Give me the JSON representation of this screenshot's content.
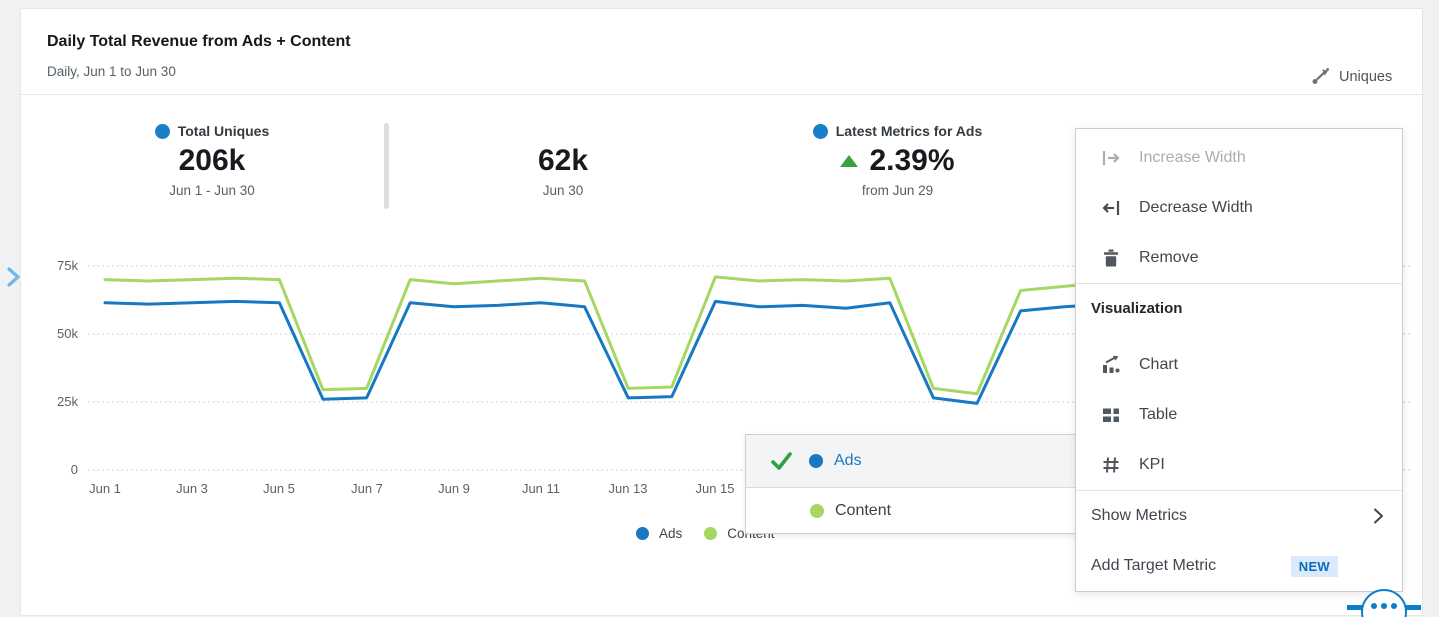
{
  "header": {
    "title": "Daily Total Revenue from Ads + Content",
    "subtitle": "Daily, Jun 1 to Jun 30",
    "metric_selector_label": "Uniques"
  },
  "kpis": {
    "total_uniques": {
      "label": "Total Uniques",
      "value": "206k",
      "period": "Jun 1 - Jun 30"
    },
    "latest_value": {
      "value": "62k",
      "period": "Jun 30"
    },
    "latest_metrics": {
      "label": "Latest Metrics for Ads",
      "value": "2.39%",
      "period": "from Jun 29",
      "direction": "up"
    }
  },
  "chart_data": {
    "type": "line",
    "title": "Daily Total Revenue from Ads + Content",
    "x": [
      "Jun 1",
      "Jun 2",
      "Jun 3",
      "Jun 4",
      "Jun 5",
      "Jun 6",
      "Jun 7",
      "Jun 8",
      "Jun 9",
      "Jun 10",
      "Jun 11",
      "Jun 12",
      "Jun 13",
      "Jun 14",
      "Jun 15",
      "Jun 16",
      "Jun 17",
      "Jun 18",
      "Jun 19",
      "Jun 20",
      "Jun 21",
      "Jun 22",
      "Jun 23",
      "Jun 24"
    ],
    "series": [
      {
        "name": "Ads",
        "color": "#1878c2",
        "values": [
          61.5,
          61,
          61.5,
          62,
          61.5,
          26,
          26.5,
          61.5,
          60,
          60.5,
          61.5,
          60,
          26.5,
          27,
          62,
          60,
          60.5,
          59.5,
          61.5,
          26.5,
          24.5,
          58.5,
          60,
          61
        ]
      },
      {
        "name": "Content",
        "color": "#a5d762",
        "values": [
          70,
          69.5,
          70,
          70.5,
          70,
          29.5,
          30,
          70,
          68.5,
          69.5,
          70.5,
          69.5,
          30,
          30.5,
          71,
          69.5,
          70,
          69.5,
          70.5,
          30,
          28,
          66,
          67.5,
          69
        ]
      }
    ],
    "unit": "k",
    "ylim": [
      0,
      80
    ],
    "y_grid_values": [
      0,
      25,
      50,
      75
    ],
    "y_tick_labels": [
      "0",
      "25k",
      "50k",
      "75k"
    ],
    "x_tick_labels": [
      "Jun 1",
      "Jun 3",
      "Jun 5",
      "Jun 7",
      "Jun 9",
      "Jun 11",
      "Jun 13",
      "Jun 15"
    ],
    "grid": "dotted horizontal",
    "legend_position": "bottom"
  },
  "legend": {
    "ads": "Ads",
    "content": "Content"
  },
  "series_menu": {
    "items": [
      {
        "label": "Ads",
        "selected": true
      },
      {
        "label": "Content",
        "selected": false
      }
    ]
  },
  "context_menu": {
    "increase_width": "Increase Width",
    "decrease_width": "Decrease Width",
    "remove": "Remove",
    "section_visualization": "Visualization",
    "chart": "Chart",
    "table": "Table",
    "kpi": "KPI",
    "show_metrics": "Show Metrics",
    "add_target_metric": "Add Target Metric",
    "new_badge": "NEW"
  },
  "colors": {
    "ads_blue": "#1878c2",
    "content_green": "#a5d762",
    "kpi_dot_blue": "#1880c9",
    "positive_green": "#3aa13f",
    "check_green": "#2f9e44",
    "accent_blue": "#0d7ccb",
    "badge_bg": "#d9eafb",
    "badge_text": "#0d6cba"
  }
}
